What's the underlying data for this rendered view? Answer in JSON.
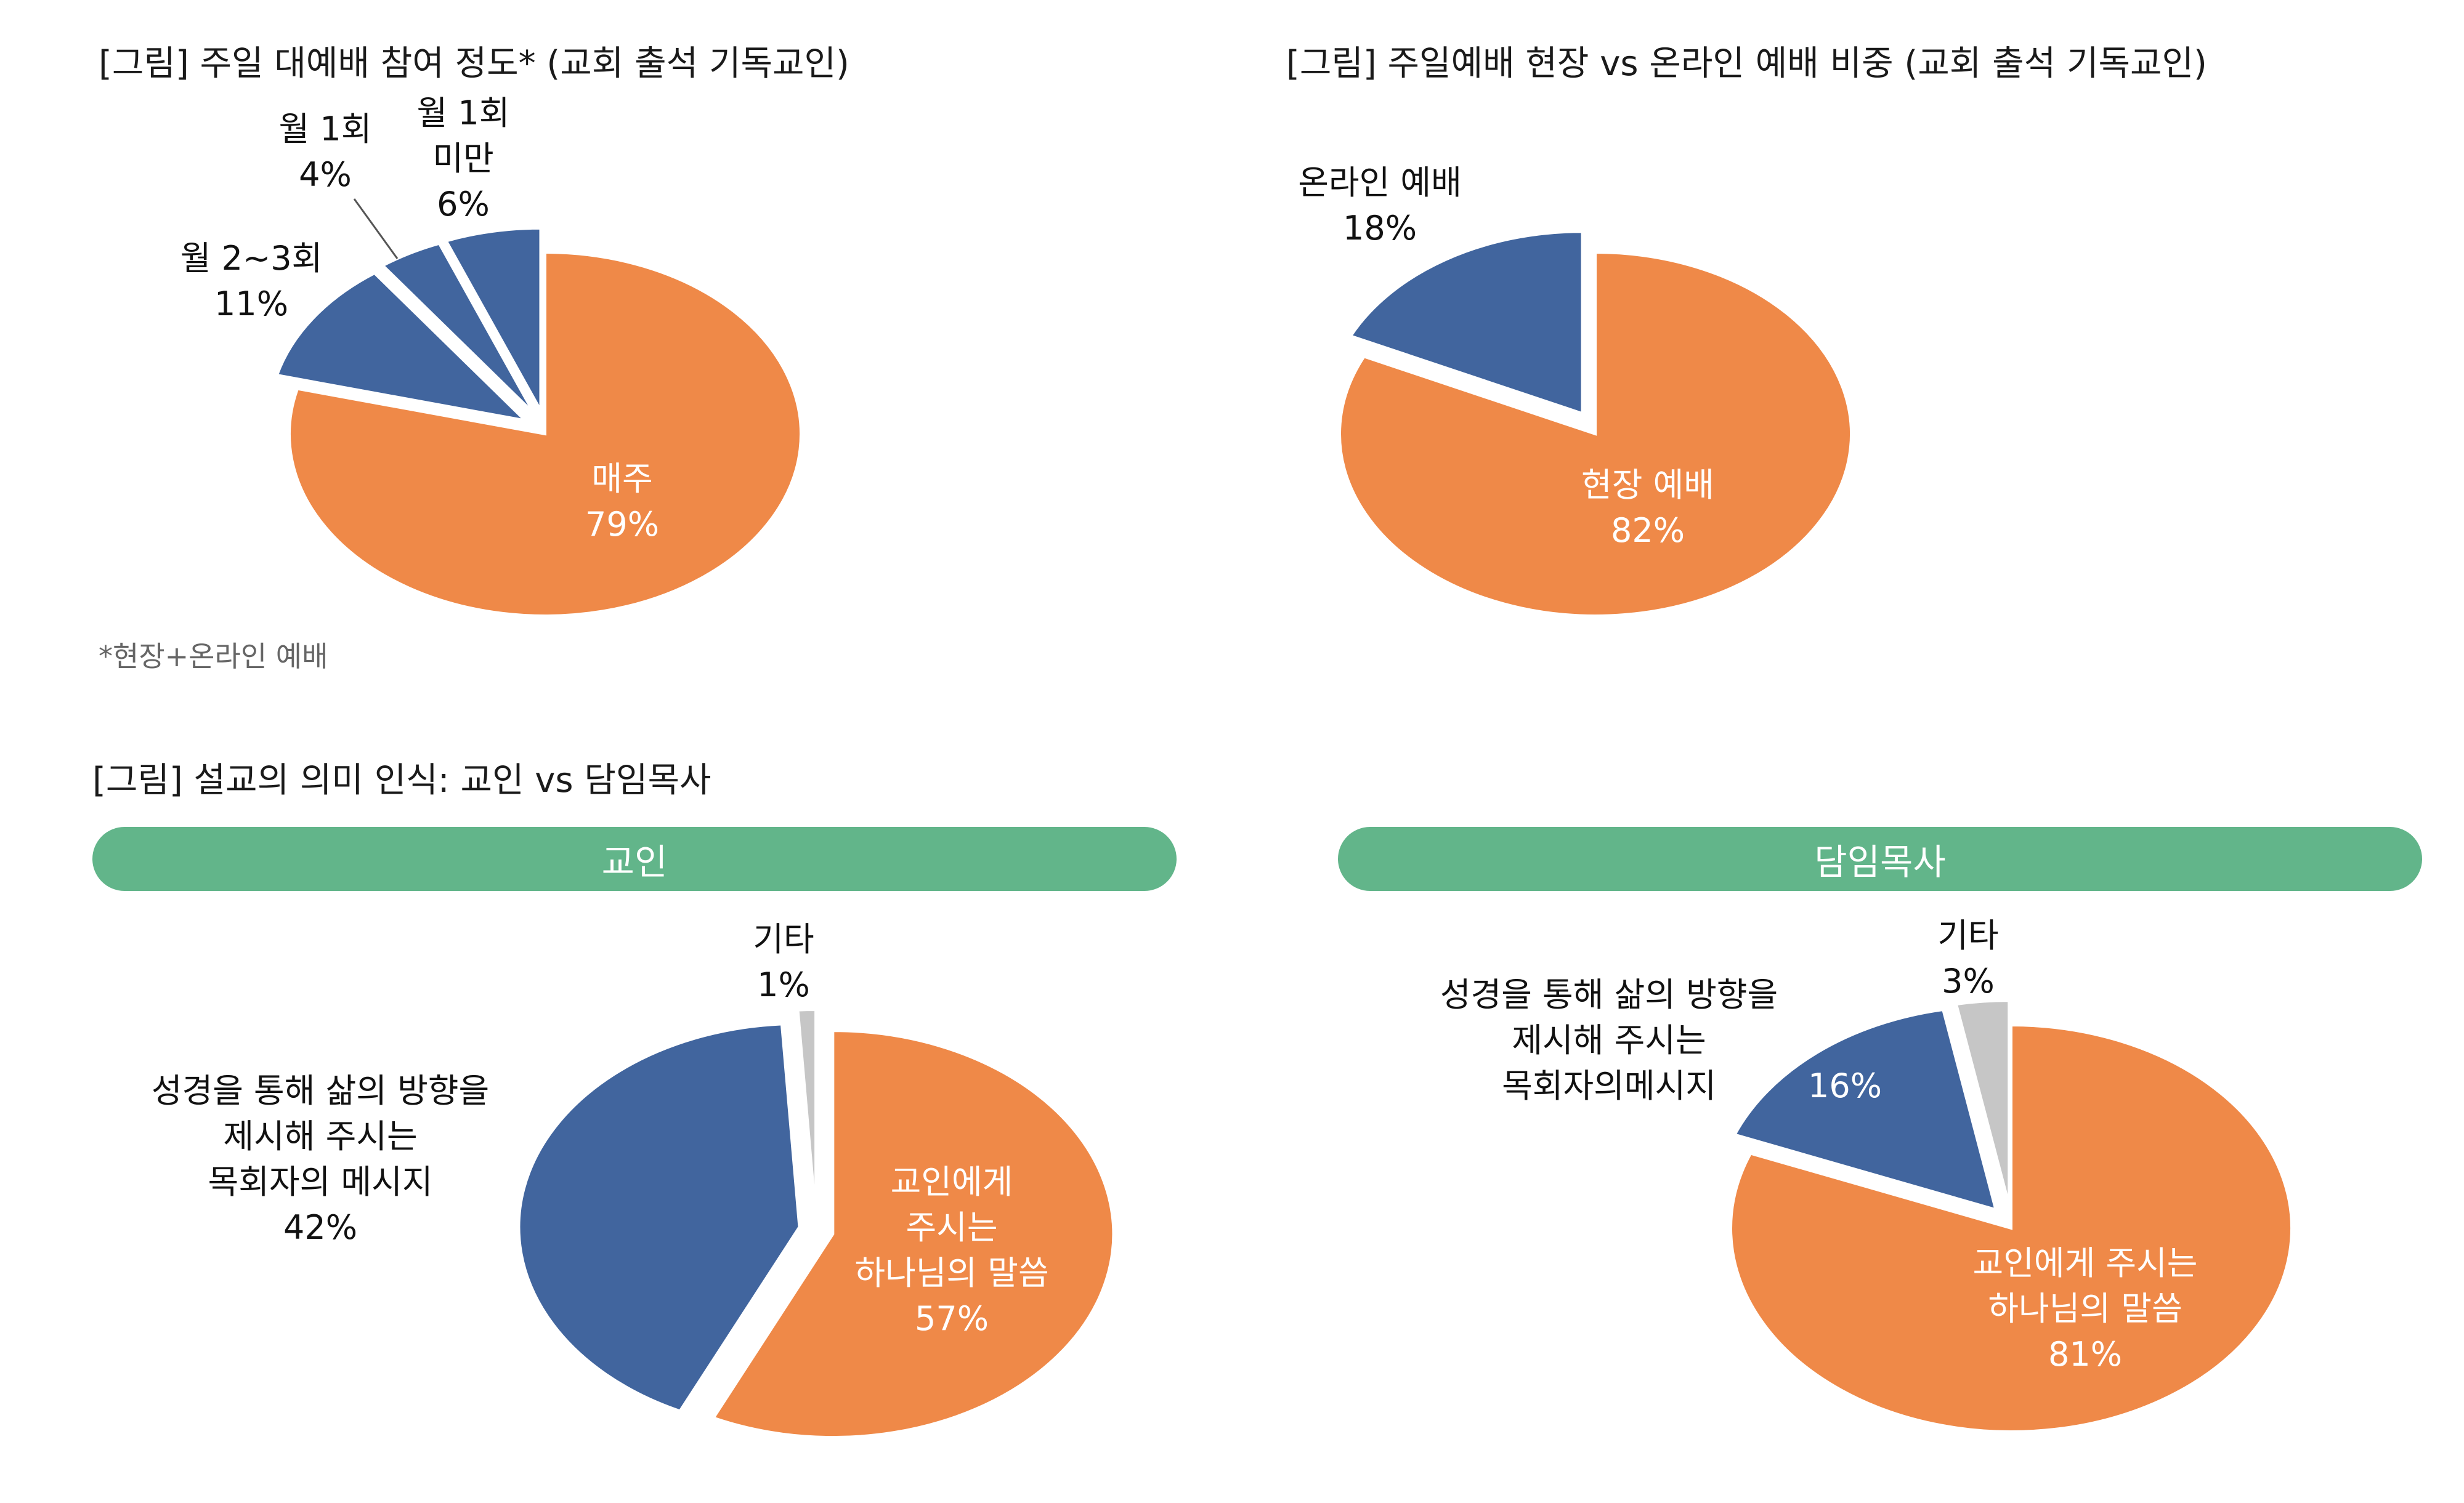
{
  "colors": {
    "orange": "#ef8948",
    "blue": "#41659e",
    "gray": "#c6c6c6",
    "pill": "#62b58a",
    "note": "#666666"
  },
  "section_title": "[그림] 설교의 의미 인식: 교인 vs 담임목사",
  "note": "*현장+온라인 예배",
  "pill_left": "교인",
  "pill_right": "담임목사",
  "chart_data": [
    {
      "id": "attendance",
      "type": "pie",
      "title": "[그림] 주일 대예배 참여 정도* (교회 출석 기독교인)",
      "slices": [
        {
          "name": "매주",
          "value": 79,
          "label": "79%"
        },
        {
          "name": "월 2~3회",
          "value": 11,
          "label": "11%"
        },
        {
          "name": "월 1회",
          "value": 4,
          "label": "4%"
        },
        {
          "name": "월 1회 미만",
          "value": 6,
          "label": "6%"
        }
      ]
    },
    {
      "id": "onsite-online",
      "type": "pie",
      "title": "[그림] 주일예배 현장 vs 온라인 예배 비중 (교회 출석 기독교인)",
      "slices": [
        {
          "name": "현장 예배",
          "value": 82,
          "label": "82%"
        },
        {
          "name": "온라인 예배",
          "value": 18,
          "label": "18%"
        }
      ]
    },
    {
      "id": "sermon-members",
      "type": "pie",
      "slices": [
        {
          "name": "교인에게 주시는 하나님의 말씀",
          "value": 57,
          "label": "57%"
        },
        {
          "name": "성경을 통해 삶의 방향을 제시해 주시는 목회자의 메시지",
          "value": 42,
          "label": "42%"
        },
        {
          "name": "기타",
          "value": 1,
          "label": "1%"
        }
      ]
    },
    {
      "id": "sermon-pastors",
      "type": "pie",
      "slices": [
        {
          "name": "교인에게 주시는 하나님의 말씀",
          "value": 81,
          "label": "81%"
        },
        {
          "name": "성경을 통해 삶의 방향을 제시해 주시는 목회자의메시지",
          "value": 16,
          "label": "16%"
        },
        {
          "name": "기타",
          "value": 3,
          "label": "3%"
        }
      ]
    }
  ],
  "labels": {
    "c1": {
      "weekly": [
        "매주",
        "79%"
      ],
      "m23": [
        "월 2~3회",
        "11%"
      ],
      "m1": [
        "월 1회",
        "4%"
      ],
      "lt1": [
        "월 1회",
        "미만",
        "6%"
      ]
    },
    "c2": {
      "onsite": [
        "현장 예배",
        "82%"
      ],
      "online": [
        "온라인 예배",
        "18%"
      ]
    },
    "c3": {
      "word": [
        "교인에게",
        "주시는",
        "하나님의 말씀",
        "57%"
      ],
      "msg": [
        "성경을 통해 삶의 방향을",
        "제시해 주시는",
        "목회자의 메시지",
        "42%"
      ],
      "etc": [
        "기타",
        "1%"
      ]
    },
    "c4": {
      "word": [
        "교인에게 주시는",
        "하나님의 말씀",
        "81%"
      ],
      "msg": [
        "성경을 통해 삶의 방향을",
        "제시해 주시는",
        "목회자의메시지"
      ],
      "msg_pct": "16%",
      "etc": [
        "기타",
        "3%"
      ]
    }
  }
}
